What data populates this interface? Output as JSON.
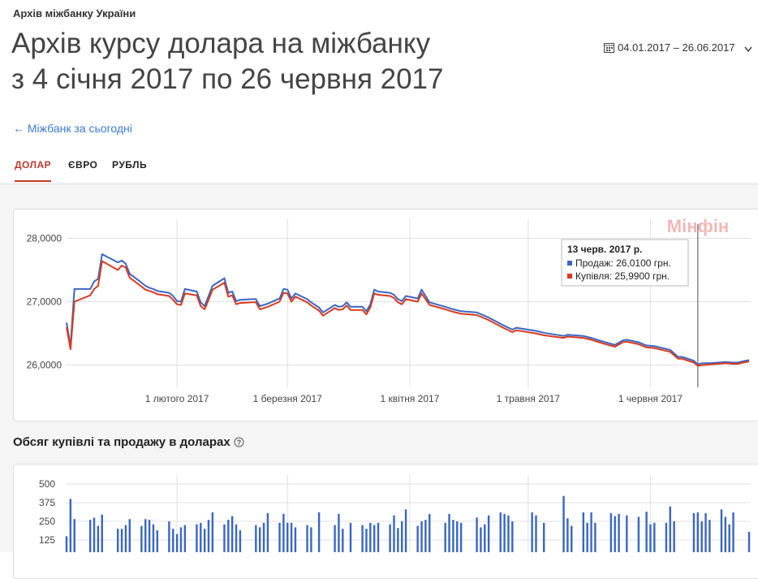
{
  "header": {
    "breadcrumb": "Архів міжбанку України",
    "title_line1": "Архів курсу долара на міжбанку",
    "title_line2": "з 4 січня 2017 по 26 червня 2017",
    "date_range": "04.01.2017 – 26.06.2017",
    "back_link": "← Міжбанк за сьогодні"
  },
  "tabs": [
    "ДОЛАР",
    "ЄВРО",
    "РУБЛЬ"
  ],
  "watermark": "Мінфін",
  "chart_data": [
    {
      "type": "line",
      "x": [
        "2017-01-04",
        "2017-01-05",
        "2017-01-06",
        "2017-01-10",
        "2017-01-11",
        "2017-01-12",
        "2017-01-13",
        "2017-01-17",
        "2017-01-18",
        "2017-01-19",
        "2017-01-20",
        "2017-01-23",
        "2017-01-24",
        "2017-01-25",
        "2017-01-26",
        "2017-01-27",
        "2017-01-30",
        "2017-01-31",
        "2017-02-01",
        "2017-02-02",
        "2017-02-03",
        "2017-02-06",
        "2017-02-07",
        "2017-02-08",
        "2017-02-09",
        "2017-02-10",
        "2017-02-13",
        "2017-02-14",
        "2017-02-15",
        "2017-02-16",
        "2017-02-17",
        "2017-02-20",
        "2017-02-21",
        "2017-02-22",
        "2017-02-24",
        "2017-02-27",
        "2017-02-28",
        "2017-03-01",
        "2017-03-02",
        "2017-03-03",
        "2017-03-06",
        "2017-03-07",
        "2017-03-09",
        "2017-03-10",
        "2017-03-13",
        "2017-03-14",
        "2017-03-15",
        "2017-03-16",
        "2017-03-17",
        "2017-03-20",
        "2017-03-21",
        "2017-03-22",
        "2017-03-23",
        "2017-03-24",
        "2017-03-27",
        "2017-03-28",
        "2017-03-29",
        "2017-03-30",
        "2017-03-31",
        "2017-04-03",
        "2017-04-04",
        "2017-04-05",
        "2017-04-06",
        "2017-04-10",
        "2017-04-12",
        "2017-04-14",
        "2017-04-18",
        "2017-04-21",
        "2017-04-25",
        "2017-04-27",
        "2017-04-28",
        "2017-05-03",
        "2017-05-05",
        "2017-05-10",
        "2017-05-11",
        "2017-05-15",
        "2017-05-17",
        "2017-05-19",
        "2017-05-23",
        "2017-05-25",
        "2017-05-26",
        "2017-05-29",
        "2017-05-31",
        "2017-06-02",
        "2017-06-06",
        "2017-06-08",
        "2017-06-09",
        "2017-06-12",
        "2017-06-13",
        "2017-06-14",
        "2017-06-16",
        "2017-06-20",
        "2017-06-22",
        "2017-06-23",
        "2017-06-26"
      ],
      "series": [
        {
          "name": "Продаж",
          "color": "#3a66c4",
          "values": [
            26.67,
            26.3,
            27.2,
            27.2,
            27.32,
            27.36,
            27.75,
            27.62,
            27.65,
            27.6,
            27.44,
            27.3,
            27.25,
            27.22,
            27.2,
            27.17,
            27.14,
            27.09,
            27.01,
            27.0,
            27.2,
            27.16,
            26.99,
            26.93,
            27.09,
            27.25,
            27.37,
            27.14,
            27.16,
            27.01,
            27.03,
            27.04,
            27.04,
            26.93,
            26.97,
            27.05,
            27.2,
            27.19,
            27.05,
            27.13,
            27.04,
            26.99,
            26.91,
            26.83,
            26.95,
            26.92,
            26.93,
            26.99,
            26.92,
            26.92,
            26.85,
            26.96,
            27.19,
            27.16,
            27.14,
            27.11,
            27.04,
            27.01,
            27.09,
            27.05,
            27.19,
            27.09,
            26.99,
            26.92,
            26.88,
            26.85,
            26.83,
            26.75,
            26.62,
            26.56,
            26.59,
            26.54,
            26.51,
            26.46,
            26.48,
            26.46,
            26.43,
            26.39,
            26.32,
            26.39,
            26.4,
            26.36,
            26.31,
            26.3,
            26.24,
            26.13,
            26.13,
            26.07,
            26.01,
            26.03,
            26.03,
            26.05,
            26.04,
            26.04,
            26.08
          ]
        },
        {
          "name": "Купівля",
          "color": "#d93a1d",
          "values": [
            26.6,
            26.25,
            27.0,
            27.1,
            27.2,
            27.25,
            27.64,
            27.5,
            27.57,
            27.54,
            27.38,
            27.24,
            27.19,
            27.17,
            27.15,
            27.12,
            27.09,
            27.03,
            26.96,
            26.95,
            27.13,
            27.1,
            26.93,
            26.88,
            27.03,
            27.19,
            27.3,
            27.08,
            27.1,
            26.96,
            26.98,
            26.99,
            26.99,
            26.88,
            26.92,
            27.0,
            27.14,
            27.13,
            27.0,
            27.08,
            26.99,
            26.94,
            26.86,
            26.78,
            26.9,
            26.87,
            26.88,
            26.94,
            26.87,
            26.87,
            26.8,
            26.91,
            27.13,
            27.11,
            27.09,
            27.06,
            26.99,
            26.96,
            27.04,
            27.0,
            27.13,
            27.04,
            26.95,
            26.88,
            26.84,
            26.81,
            26.79,
            26.71,
            26.58,
            26.52,
            26.55,
            26.5,
            26.47,
            26.43,
            26.45,
            26.43,
            26.4,
            26.36,
            26.29,
            26.36,
            26.37,
            26.33,
            26.28,
            26.27,
            26.21,
            26.1,
            26.1,
            26.04,
            25.99,
            26.0,
            26.01,
            26.03,
            26.02,
            26.02,
            26.06
          ]
        }
      ],
      "xlim": [
        "2017-01-04",
        "2017-06-26"
      ],
      "xticks": [
        {
          "value": "2017-02-01",
          "label": "1 лютого 2017"
        },
        {
          "value": "2017-03-01",
          "label": "1 березня 2017"
        },
        {
          "value": "2017-04-01",
          "label": "1 квітня 2017"
        },
        {
          "value": "2017-05-01",
          "label": "1 травня 2017"
        },
        {
          "value": "2017-06-01",
          "label": "1 червня 2017"
        }
      ],
      "ylim": [
        25.65,
        28.3
      ],
      "yticks": [
        {
          "value": 26,
          "label": "26,0000"
        },
        {
          "value": 27,
          "label": "27,0000"
        },
        {
          "value": 28,
          "label": "28,0000"
        }
      ],
      "grid": true,
      "tooltip": {
        "x": "2017-06-13",
        "title": "13 черв. 2017 р.",
        "lines": [
          "Продаж: 26,0100 грн.",
          "Купівля: 25,9900 грн."
        ]
      }
    },
    {
      "type": "bar",
      "title": "Обсяг купівлі та продажу в доларах",
      "color": "#3a66c4",
      "x": [
        "2017-01-04",
        "2017-01-05",
        "2017-01-06",
        "2017-01-10",
        "2017-01-11",
        "2017-01-12",
        "2017-01-13",
        "2017-01-17",
        "2017-01-18",
        "2017-01-19",
        "2017-01-20",
        "2017-01-23",
        "2017-01-24",
        "2017-01-25",
        "2017-01-26",
        "2017-01-27",
        "2017-01-30",
        "2017-01-31",
        "2017-02-01",
        "2017-02-02",
        "2017-02-03",
        "2017-02-06",
        "2017-02-07",
        "2017-02-08",
        "2017-02-09",
        "2017-02-10",
        "2017-02-13",
        "2017-02-14",
        "2017-02-15",
        "2017-02-16",
        "2017-02-17",
        "2017-02-21",
        "2017-02-22",
        "2017-02-23",
        "2017-02-24",
        "2017-02-27",
        "2017-02-28",
        "2017-03-01",
        "2017-03-02",
        "2017-03-03",
        "2017-03-06",
        "2017-03-07",
        "2017-03-09",
        "2017-03-13",
        "2017-03-14",
        "2017-03-15",
        "2017-03-17",
        "2017-03-20",
        "2017-03-21",
        "2017-03-22",
        "2017-03-23",
        "2017-03-24",
        "2017-03-27",
        "2017-03-28",
        "2017-03-29",
        "2017-03-30",
        "2017-03-31",
        "2017-04-03",
        "2017-04-04",
        "2017-04-05",
        "2017-04-06",
        "2017-04-10",
        "2017-04-11",
        "2017-04-12",
        "2017-04-13",
        "2017-04-14",
        "2017-04-18",
        "2017-04-19",
        "2017-04-20",
        "2017-04-21",
        "2017-04-24",
        "2017-04-25",
        "2017-04-26",
        "2017-04-27",
        "2017-05-02",
        "2017-05-03",
        "2017-05-05",
        "2017-05-10",
        "2017-05-11",
        "2017-05-12",
        "2017-05-15",
        "2017-05-16",
        "2017-05-17",
        "2017-05-18",
        "2017-05-22",
        "2017-05-23",
        "2017-05-24",
        "2017-05-26",
        "2017-05-29",
        "2017-05-31",
        "2017-06-01",
        "2017-06-02",
        "2017-06-05",
        "2017-06-06",
        "2017-06-07",
        "2017-06-12",
        "2017-06-13",
        "2017-06-14",
        "2017-06-15",
        "2017-06-16",
        "2017-06-19",
        "2017-06-20",
        "2017-06-21",
        "2017-06-22",
        "2017-06-26"
      ],
      "values": [
        150,
        400,
        265,
        260,
        275,
        220,
        295,
        200,
        200,
        225,
        265,
        220,
        265,
        260,
        230,
        190,
        250,
        200,
        165,
        210,
        225,
        230,
        240,
        200,
        260,
        310,
        230,
        260,
        285,
        230,
        190,
        225,
        210,
        240,
        305,
        240,
        300,
        240,
        240,
        210,
        225,
        210,
        310,
        225,
        300,
        200,
        240,
        225,
        200,
        240,
        225,
        240,
        230,
        290,
        205,
        250,
        330,
        220,
        250,
        260,
        300,
        240,
        300,
        260,
        250,
        240,
        275,
        210,
        230,
        290,
        310,
        300,
        290,
        250,
        310,
        290,
        240,
        420,
        270,
        220,
        310,
        240,
        310,
        240,
        305,
        285,
        300,
        290,
        280,
        315,
        230,
        240,
        240,
        350,
        250,
        305,
        310,
        250,
        305,
        260,
        330,
        280,
        230,
        310,
        180
      ],
      "xlim": [
        "2017-01-04",
        "2017-06-26"
      ],
      "xticks": [
        "2017-02-01",
        "2017-03-01",
        "2017-04-01",
        "2017-05-01",
        "2017-06-01"
      ],
      "ylim": [
        0,
        560
      ],
      "yticks": [
        125,
        250,
        375,
        500
      ],
      "grid": true
    }
  ]
}
